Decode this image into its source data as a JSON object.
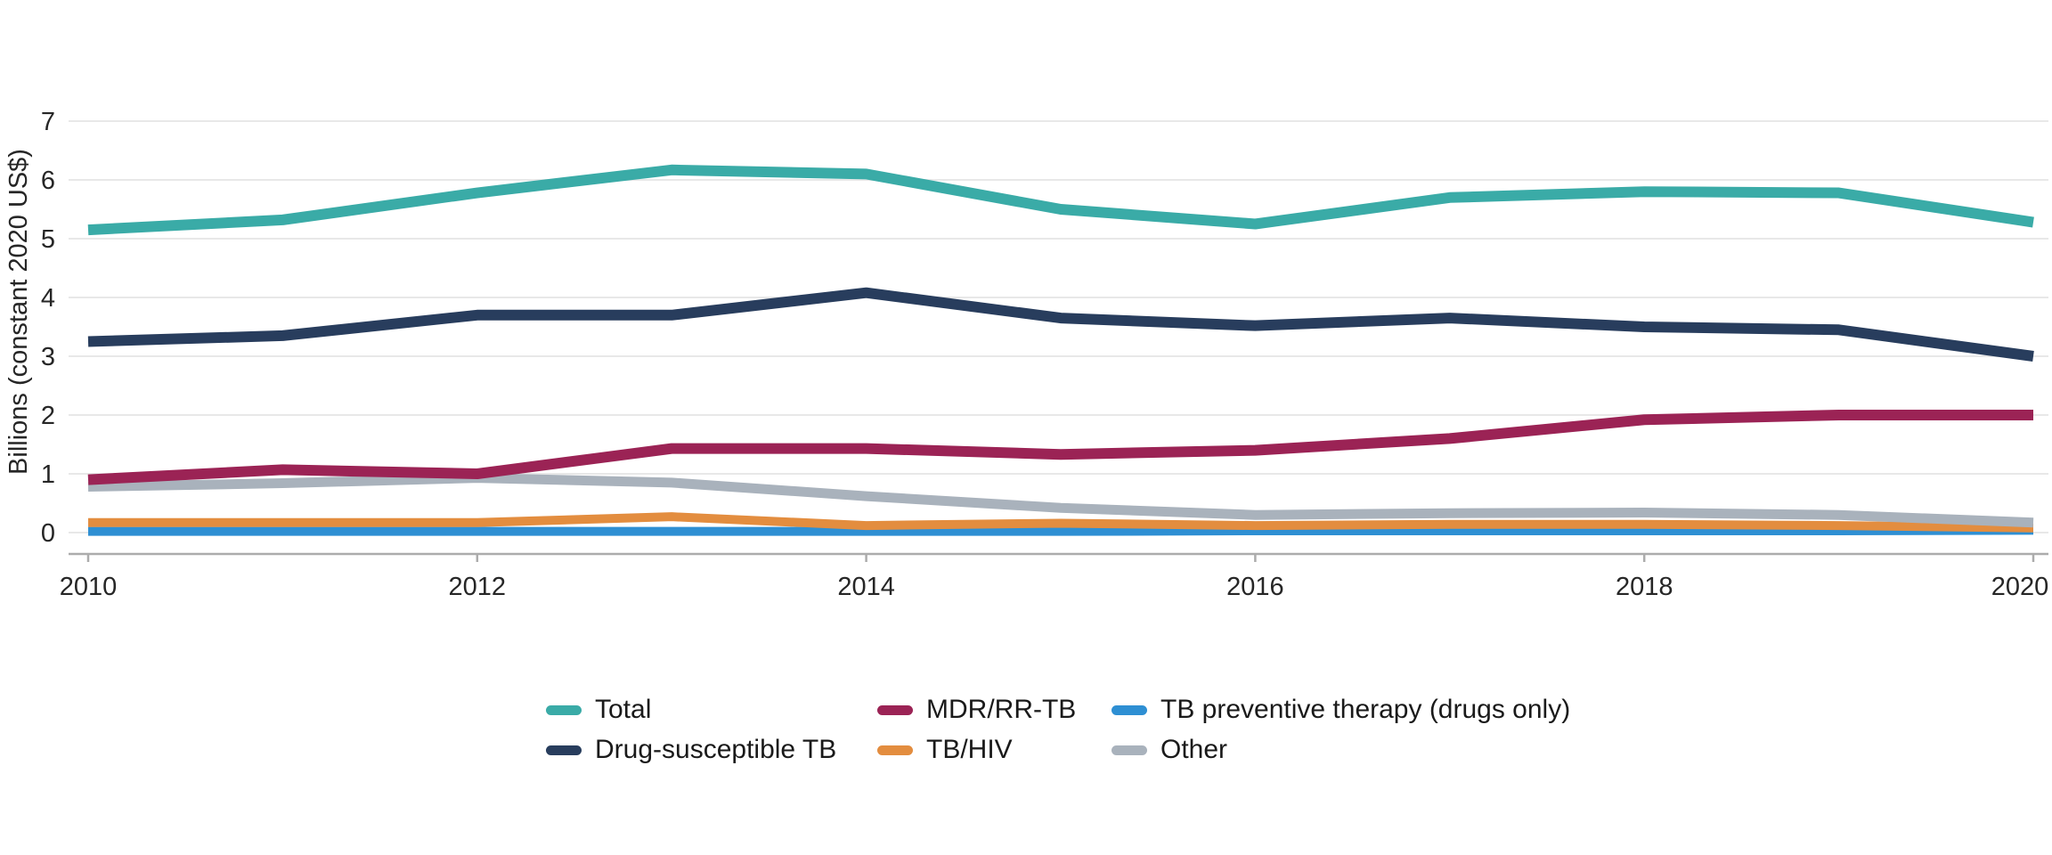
{
  "chart_data": {
    "type": "line",
    "title": "",
    "xlabel": "",
    "ylabel": "Billions (constant 2020 US$)",
    "x": [
      2010,
      2011,
      2012,
      2013,
      2014,
      2015,
      2016,
      2017,
      2018,
      2019,
      2020
    ],
    "x_tick_years": [
      2010,
      2012,
      2014,
      2016,
      2018,
      2020
    ],
    "x_tick_labels": [
      "2010",
      "2012",
      "2014",
      "2016",
      "2018",
      "2020"
    ],
    "y_ticks": [
      0,
      1,
      2,
      3,
      4,
      5,
      6,
      7
    ],
    "y_tick_labels": [
      "0",
      "1",
      "2",
      "3",
      "4",
      "5",
      "6",
      "7"
    ],
    "ylim": [
      0,
      7
    ],
    "grid": "horizontal",
    "legend_position": "bottom-center",
    "series": [
      {
        "name": "Total",
        "color": "#3AABA7",
        "values": [
          5.15,
          5.32,
          5.78,
          6.17,
          6.1,
          5.5,
          5.25,
          5.7,
          5.8,
          5.78,
          5.28
        ]
      },
      {
        "name": "Drug-susceptible TB",
        "color": "#283D5D",
        "values": [
          3.25,
          3.35,
          3.7,
          3.7,
          4.08,
          3.65,
          3.52,
          3.65,
          3.5,
          3.45,
          3.0
        ]
      },
      {
        "name": "MDR/RR-TB",
        "color": "#9B2355",
        "values": [
          0.9,
          1.07,
          1.0,
          1.43,
          1.43,
          1.33,
          1.4,
          1.6,
          1.92,
          2.0,
          2.0
        ]
      },
      {
        "name": "TB/HIV",
        "color": "#E38D3F",
        "values": [
          0.17,
          0.17,
          0.17,
          0.27,
          0.12,
          0.16,
          0.12,
          0.14,
          0.14,
          0.12,
          0.08
        ]
      },
      {
        "name": "TB preventive therapy (drugs only)",
        "color": "#2E8FD3",
        "values": [
          0.02,
          0.02,
          0.02,
          0.02,
          0.02,
          0.02,
          0.03,
          0.03,
          0.03,
          0.03,
          0.04
        ]
      },
      {
        "name": "Other",
        "color": "#A9B2BC",
        "values": [
          0.78,
          0.84,
          0.93,
          0.85,
          0.62,
          0.42,
          0.3,
          0.33,
          0.34,
          0.3,
          0.17
        ]
      }
    ],
    "colors": {
      "gridline": "#E8E8E8",
      "axis_line": "#ACACAC",
      "tick_text": "#262626",
      "background": "#FFFFFF"
    }
  }
}
